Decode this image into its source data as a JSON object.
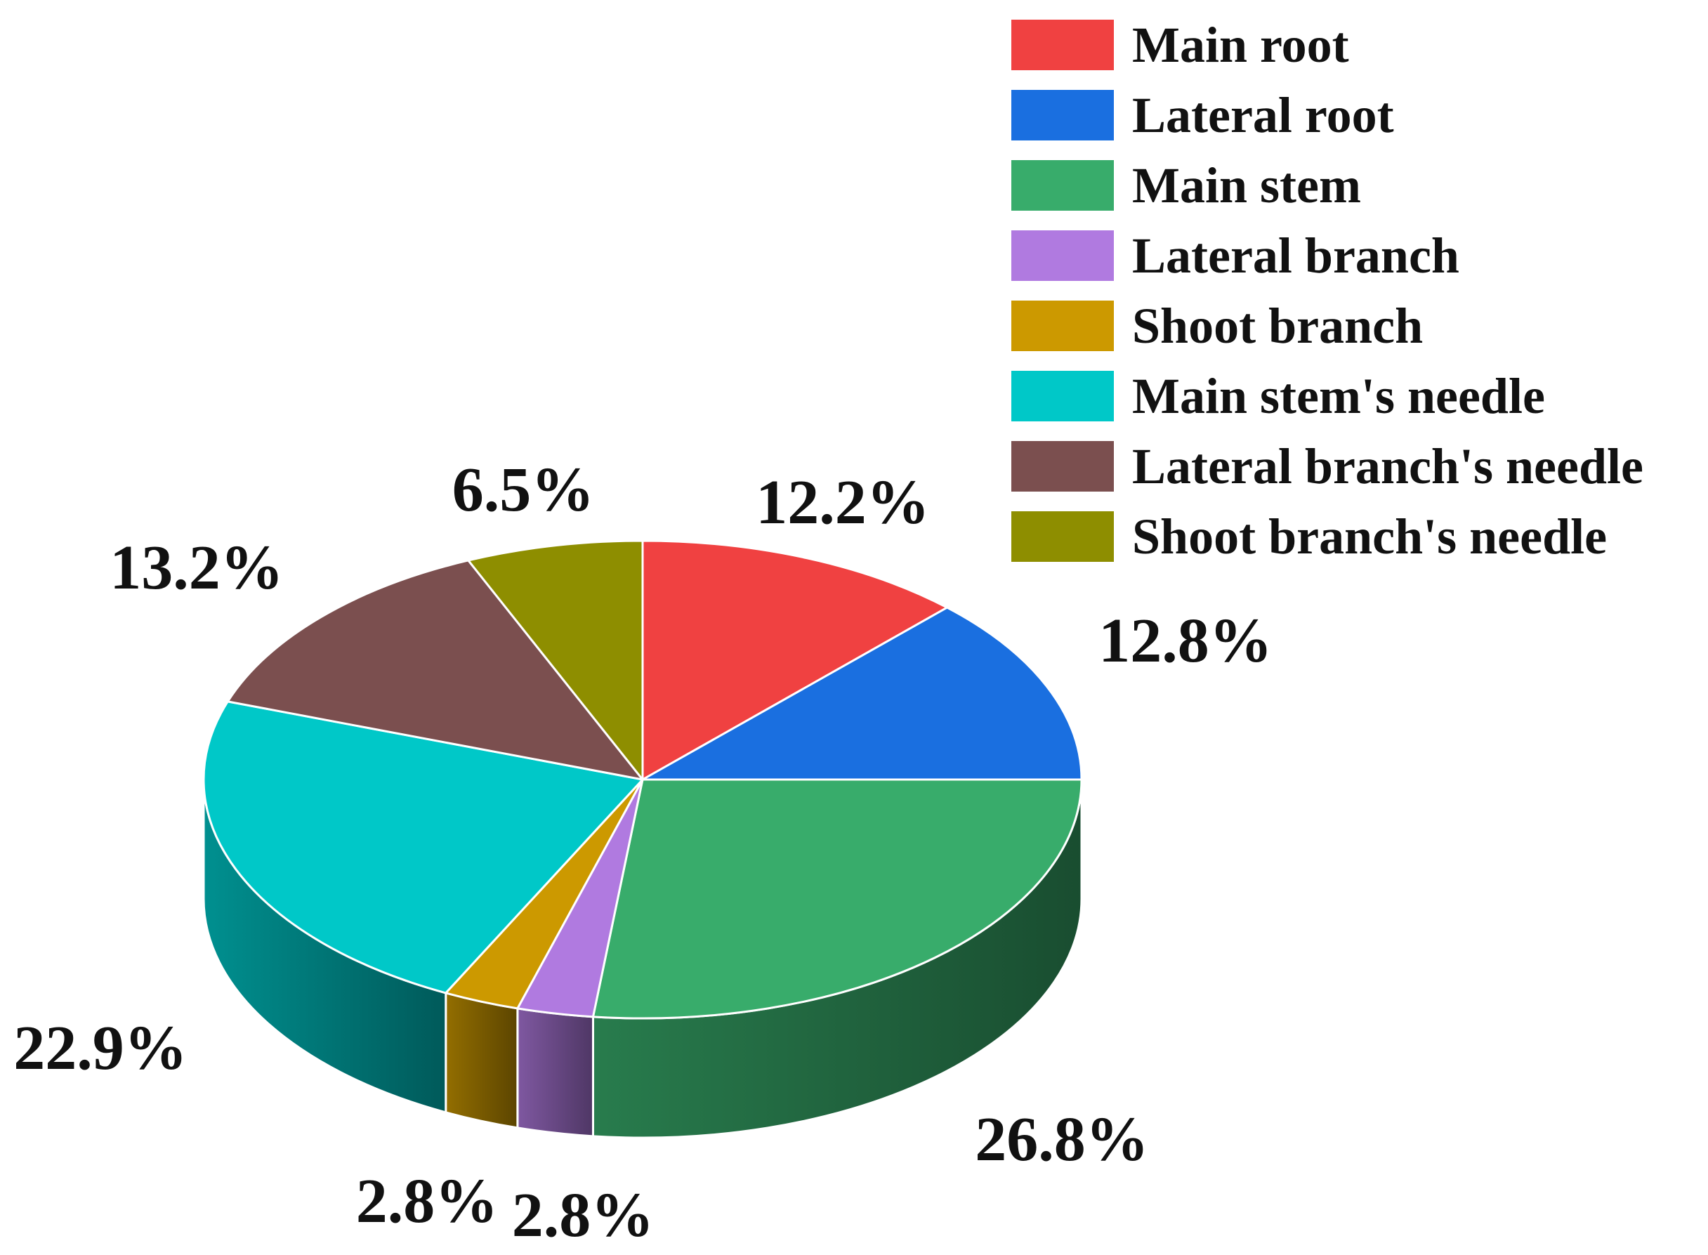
{
  "chart_data": {
    "type": "pie",
    "style": "3d",
    "title": "",
    "legend_position": "top-right",
    "slices": [
      {
        "name": "Main root",
        "value": 12.2,
        "label": "12.2%",
        "color": "#f04141"
      },
      {
        "name": "Lateral root",
        "value": 12.8,
        "label": "12.8%",
        "color": "#1a6fe0"
      },
      {
        "name": "Main stem",
        "value": 26.8,
        "label": "26.8%",
        "color": "#38ac6b"
      },
      {
        "name": "Lateral branch",
        "value": 2.8,
        "label": "2.8%",
        "color": "#b07ae0"
      },
      {
        "name": "Shoot branch",
        "value": 2.8,
        "label": "2.8%",
        "color": "#cc9900"
      },
      {
        "name": "Main stem's needle",
        "value": 22.9,
        "label": "22.9%",
        "color": "#00c8c8"
      },
      {
        "name": "Lateral branch's needle",
        "value": 13.2,
        "label": "13.2%",
        "color": "#7b4f4f"
      },
      {
        "name": "Shoot branch's needle",
        "value": 6.5,
        "label": "6.5%",
        "color": "#8e8e00"
      }
    ]
  }
}
